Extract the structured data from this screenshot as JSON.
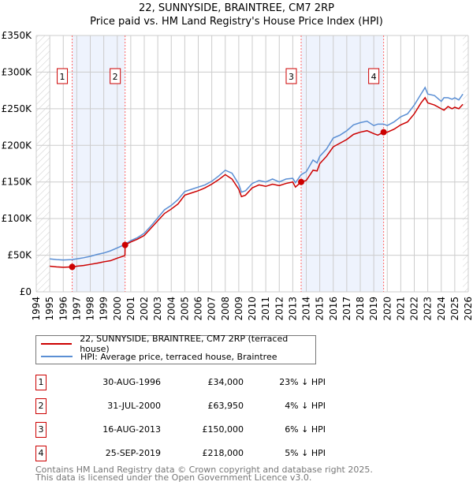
{
  "chart_data": {
    "type": "line",
    "title": "22, SUNNYSIDE, BRAINTREE, CM7 2RP",
    "subtitle": "Price paid vs. HM Land Registry's House Price Index (HPI)",
    "xlim": [
      1994,
      2026
    ],
    "ylim": [
      0,
      350000
    ],
    "x_ticks": [
      "1994",
      "1995",
      "1996",
      "1997",
      "1998",
      "1999",
      "2000",
      "2001",
      "2002",
      "2003",
      "2004",
      "2005",
      "2006",
      "2007",
      "2008",
      "2009",
      "2010",
      "2011",
      "2012",
      "2013",
      "2014",
      "2015",
      "2016",
      "2017",
      "2018",
      "2019",
      "2020",
      "2021",
      "2022",
      "2023",
      "2024",
      "2025",
      "2026"
    ],
    "y_ticks": [
      {
        "v": 0,
        "label": "£0"
      },
      {
        "v": 50000,
        "label": "£50K"
      },
      {
        "v": 100000,
        "label": "£100K"
      },
      {
        "v": 150000,
        "label": "£150K"
      },
      {
        "v": 200000,
        "label": "£200K"
      },
      {
        "v": 250000,
        "label": "£250K"
      },
      {
        "v": 300000,
        "label": "£300K"
      },
      {
        "v": 350000,
        "label": "£350K"
      }
    ],
    "series": [
      {
        "name": "22, SUNNYSIDE, BRAINTREE, CM7 2RP (terraced house)",
        "color": "#cc0000",
        "x": [
          1995,
          1995.5,
          1996,
          1996.66,
          1997,
          1997.5,
          1998,
          1998.5,
          1999,
          1999.5,
          2000,
          2000.5,
          2000.57,
          2000.58,
          2001,
          2001.5,
          2002,
          2002.5,
          2003,
          2003.5,
          2004,
          2004.5,
          2005,
          2005.5,
          2006,
          2006.5,
          2007,
          2007.5,
          2008,
          2008.5,
          2009,
          2009.2,
          2009.5,
          2010,
          2010.5,
          2011,
          2011.5,
          2012,
          2012.5,
          2013,
          2013.2,
          2013.62,
          2014,
          2014.5,
          2014.8,
          2015,
          2015.5,
          2016,
          2016.5,
          2017,
          2017.5,
          2018,
          2018.5,
          2019,
          2019.3,
          2019.73,
          2020,
          2020.5,
          2021,
          2021.5,
          2022,
          2022.5,
          2022.8,
          2023,
          2023.5,
          2024,
          2024.2,
          2024.5,
          2024.8,
          2025,
          2025.3,
          2025.6
        ],
        "y": [
          35000,
          34000,
          33500,
          34000,
          35000,
          36000,
          37500,
          39000,
          41000,
          42500,
          46000,
          49000,
          50000,
          63950,
          68000,
          72000,
          77000,
          87000,
          97000,
          107000,
          113000,
          120000,
          132000,
          135000,
          138000,
          142000,
          147000,
          153000,
          160000,
          154000,
          140000,
          130000,
          132000,
          142000,
          146000,
          144000,
          147000,
          145000,
          148000,
          150000,
          143000,
          150000,
          152000,
          166000,
          165000,
          175000,
          185000,
          198000,
          203000,
          208000,
          215000,
          218000,
          220000,
          216000,
          214000,
          218000,
          218000,
          222000,
          228000,
          232000,
          243000,
          258000,
          265000,
          258000,
          255000,
          250000,
          248000,
          253000,
          250000,
          252000,
          250000,
          256000
        ]
      },
      {
        "name": "HPI: Average price, terraced house, Braintree",
        "color": "#5b8fd4",
        "x": [
          1995,
          1995.5,
          1996,
          1996.66,
          1997,
          1997.5,
          1998,
          1998.5,
          1999,
          1999.5,
          2000,
          2000.5,
          2001,
          2001.5,
          2002,
          2002.5,
          2003,
          2003.5,
          2004,
          2004.5,
          2005,
          2005.5,
          2006,
          2006.5,
          2007,
          2007.5,
          2008,
          2008.5,
          2009,
          2009.2,
          2009.5,
          2010,
          2010.5,
          2011,
          2011.5,
          2012,
          2012.5,
          2013,
          2013.2,
          2013.62,
          2014,
          2014.5,
          2014.8,
          2015,
          2015.5,
          2016,
          2016.5,
          2017,
          2017.5,
          2018,
          2018.5,
          2019,
          2019.3,
          2019.73,
          2020,
          2020.5,
          2021,
          2021.5,
          2022,
          2022.5,
          2022.8,
          2023,
          2023.5,
          2024,
          2024.2,
          2024.5,
          2024.8,
          2025,
          2025.3,
          2025.6
        ],
        "y": [
          45000,
          44000,
          43500,
          44000,
          45000,
          46500,
          48500,
          51000,
          53000,
          56000,
          60000,
          64000,
          70000,
          74000,
          80000,
          90000,
          101000,
          112000,
          118000,
          126000,
          137000,
          140000,
          143000,
          146000,
          151000,
          158000,
          166000,
          162000,
          147000,
          136000,
          138000,
          148000,
          152000,
          150000,
          154000,
          150000,
          154000,
          155000,
          149000,
          160000,
          164000,
          180000,
          176000,
          185000,
          195000,
          210000,
          214000,
          220000,
          228000,
          231000,
          233000,
          227000,
          229000,
          229000,
          227000,
          232000,
          239000,
          243000,
          255000,
          270000,
          279000,
          270000,
          268000,
          260000,
          265000,
          265000,
          263000,
          265000,
          262000,
          270000
        ]
      }
    ],
    "sales": [
      {
        "num": "1",
        "x": 1996.66,
        "y": 34000,
        "date": "30-AUG-1996",
        "price": "£34,000",
        "hpi": "23% ↓ HPI"
      },
      {
        "num": "2",
        "x": 2000.58,
        "y": 63950,
        "date": "31-JUL-2000",
        "price": "£63,950",
        "hpi": "4% ↓ HPI"
      },
      {
        "num": "3",
        "x": 2013.62,
        "y": 150000,
        "date": "16-AUG-2013",
        "price": "£150,000",
        "hpi": "6% ↓ HPI"
      },
      {
        "num": "4",
        "x": 2019.73,
        "y": 218000,
        "date": "25-SEP-2019",
        "price": "£218,000",
        "hpi": "5% ↓ HPI"
      }
    ],
    "data_range": [
      1995,
      2025.6
    ]
  },
  "footer": [
    "Contains HM Land Registry data © Crown copyright and database right 2025.",
    "This data is licensed under the Open Government Licence v3.0."
  ]
}
